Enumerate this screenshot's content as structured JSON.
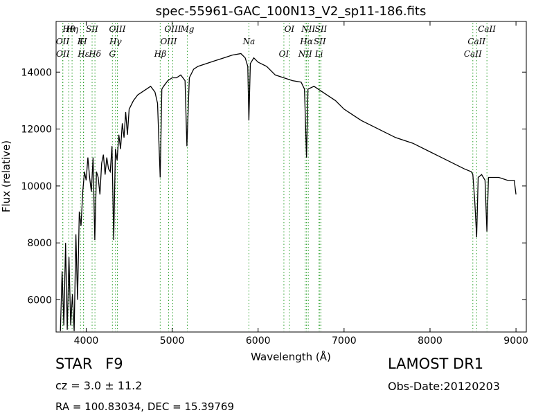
{
  "chart_data": {
    "type": "line",
    "title": "spec-55961-GAC_100N13_V2_sp11-186.fits",
    "xlabel": "Wavelength (Å)",
    "ylabel": "Flux (relative)",
    "xlim": [
      3650,
      9120
    ],
    "ylim": [
      4870,
      15780
    ],
    "xticks": [
      4000,
      5000,
      6000,
      7000,
      8000,
      9000
    ],
    "yticks": [
      6000,
      8000,
      10000,
      12000,
      14000
    ],
    "grid": false,
    "series": [
      {
        "x": [
          3700,
          3720,
          3740,
          3760,
          3780,
          3800,
          3820,
          3840,
          3860,
          3880,
          3900,
          3920,
          3940,
          3960,
          3980,
          4000,
          4020,
          4040,
          4060,
          4080,
          4100,
          4120,
          4140,
          4160,
          4180,
          4200,
          4220,
          4240,
          4260,
          4280,
          4300,
          4320,
          4340,
          4360,
          4380,
          4400,
          4420,
          4440,
          4460,
          4480,
          4500,
          4550,
          4600,
          4650,
          4700,
          4750,
          4800,
          4830,
          4861,
          4880,
          4900,
          4950,
          5000,
          5050,
          5100,
          5150,
          5172,
          5200,
          5250,
          5300,
          5400,
          5500,
          5600,
          5700,
          5800,
          5850,
          5880,
          5893,
          5910,
          5950,
          6000,
          6100,
          6200,
          6300,
          6400,
          6500,
          6540,
          6563,
          6580,
          6650,
          6700,
          6800,
          6900,
          7000,
          7200,
          7400,
          7600,
          7800,
          8000,
          8200,
          8400,
          8480,
          8498,
          8520,
          8542,
          8560,
          8600,
          8640,
          8662,
          8680,
          8700,
          8800,
          8900,
          8980,
          9000
        ],
        "values": [
          4900,
          7000,
          5100,
          8000,
          4950,
          7500,
          5100,
          6200,
          4900,
          8300,
          6000,
          9100,
          8600,
          9800,
          10500,
          10200,
          11000,
          10300,
          9800,
          11000,
          8100,
          10500,
          10300,
          9700,
          10800,
          11100,
          10400,
          11000,
          10600,
          10500,
          11400,
          8100,
          11300,
          10900,
          11800,
          11300,
          12200,
          11700,
          12600,
          11800,
          12700,
          13000,
          13200,
          13300,
          13400,
          13500,
          13300,
          12900,
          10300,
          13400,
          13500,
          13700,
          13800,
          13800,
          13900,
          13700,
          11400,
          13800,
          14100,
          14200,
          14300,
          14400,
          14500,
          14600,
          14650,
          14500,
          14200,
          12300,
          14300,
          14500,
          14350,
          14200,
          13900,
          13800,
          13700,
          13650,
          13400,
          11000,
          13400,
          13500,
          13400,
          13200,
          13000,
          12700,
          12300,
          12000,
          11700,
          11500,
          11200,
          10900,
          10600,
          10500,
          10400,
          9500,
          8200,
          10300,
          10400,
          10200,
          8400,
          10300,
          10300,
          10300,
          10200,
          10200,
          9700
        ]
      }
    ],
    "lines": [
      {
        "label": "Hθ",
        "x": 3798
      },
      {
        "label": "OII",
        "x": 3727
      },
      {
        "label": "OII",
        "x": 3729
      },
      {
        "label": "Hη",
        "x": 3836
      },
      {
        "label": "K",
        "x": 3934
      },
      {
        "label": "Hε",
        "x": 3970
      },
      {
        "label": "SII",
        "x": 4069
      },
      {
        "label": "H",
        "x": 3968
      },
      {
        "label": "Hδ",
        "x": 4102
      },
      {
        "label": "OIII",
        "x": 4363
      },
      {
        "label": "Hγ",
        "x": 4341
      },
      {
        "label": "G",
        "x": 4305
      },
      {
        "label": "OIII",
        "x": 5007
      },
      {
        "label": "OIII",
        "x": 4959
      },
      {
        "label": "Hβ",
        "x": 4861
      },
      {
        "label": "Mg",
        "x": 5176
      },
      {
        "label": "Na",
        "x": 5893
      },
      {
        "label": "OI",
        "x": 6300
      },
      {
        "label": "OI",
        "x": 6364
      },
      {
        "label": "Hα",
        "x": 6563
      },
      {
        "label": "NII",
        "x": 6548
      },
      {
        "label": "NII",
        "x": 6584
      },
      {
        "label": "SII",
        "x": 6717
      },
      {
        "label": "Li",
        "x": 6708
      },
      {
        "label": "SII",
        "x": 6731
      },
      {
        "label": "CaII",
        "x": 8542
      },
      {
        "label": "CaII",
        "x": 8498
      },
      {
        "label": "CaII",
        "x": 8662
      }
    ],
    "line_color": "#000000",
    "marker_color": "#2ca02c"
  },
  "info": {
    "object_class": "STAR",
    "subclass": "F9",
    "redshift": "cz = 3.0 ± 11.2",
    "coords": "RA = 100.83034, DEC = 15.39769",
    "survey": "LAMOST DR1",
    "obs_date": "Obs-Date:20120203"
  }
}
